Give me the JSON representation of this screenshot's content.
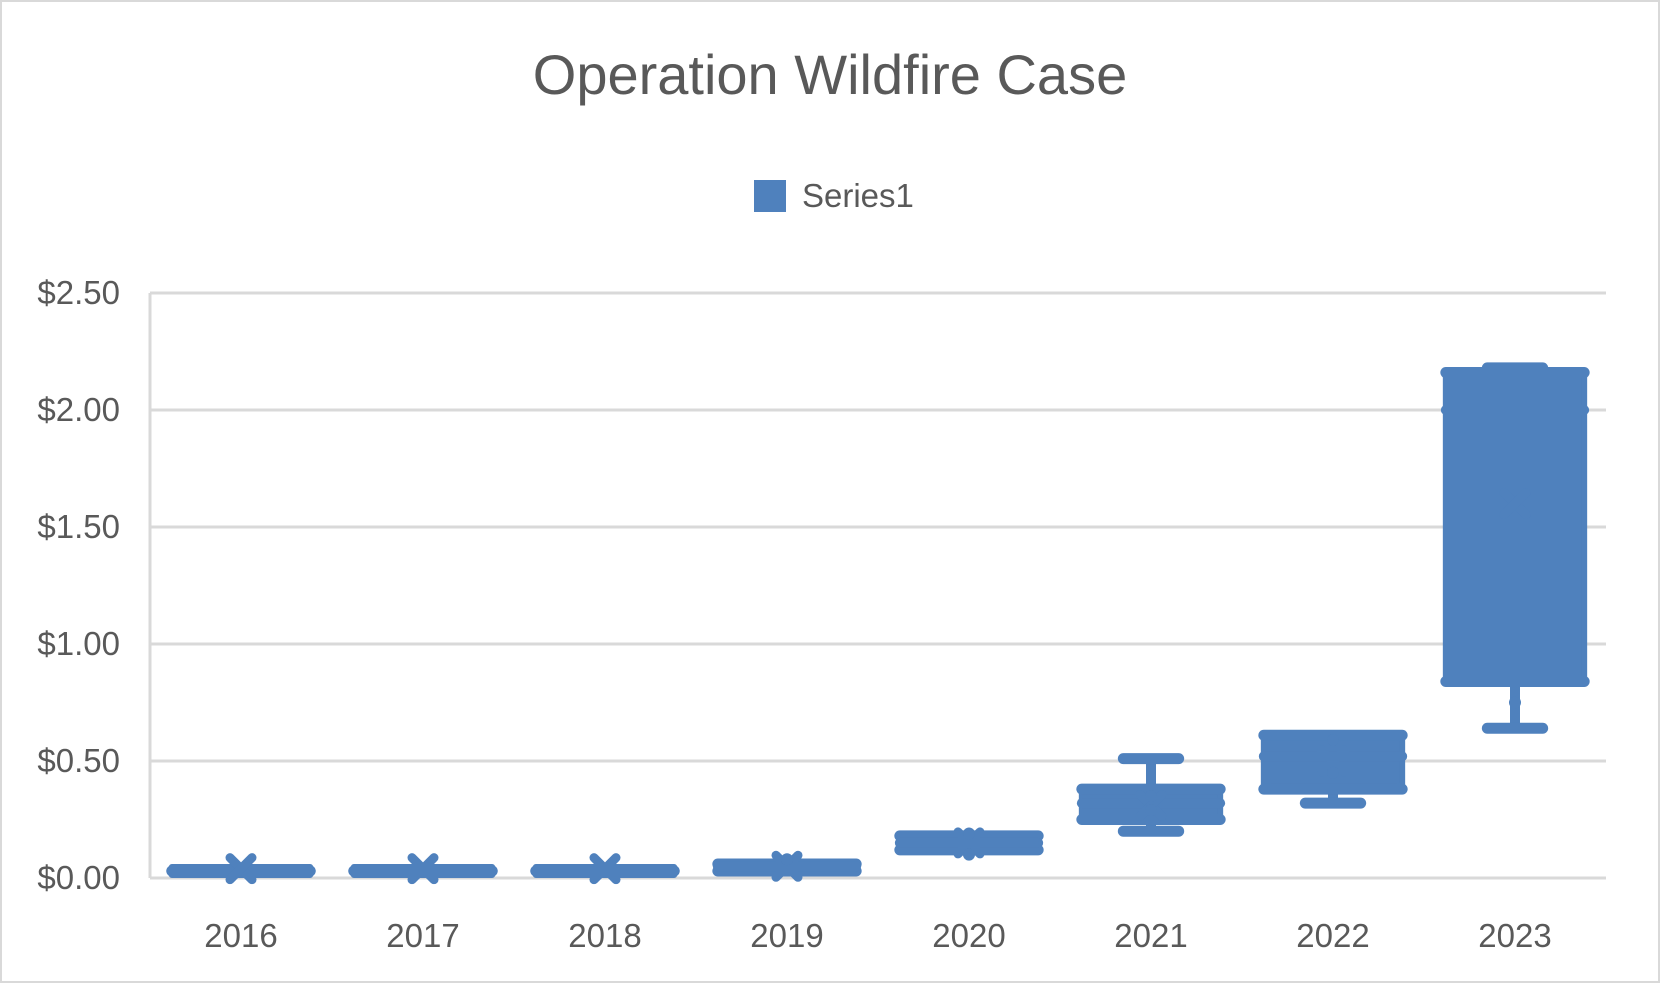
{
  "chart_data": {
    "type": "box",
    "title": "Operation Wildfire Case",
    "xlabel": "",
    "ylabel": "",
    "categories": [
      "2016",
      "2017",
      "2018",
      "2019",
      "2020",
      "2021",
      "2022",
      "2023"
    ],
    "series": [
      {
        "name": "Series1",
        "color": "#4f81bd",
        "boxes": [
          {
            "category": "2016",
            "min": 0.03,
            "q1": 0.03,
            "median": 0.03,
            "q3": 0.03,
            "max": 0.03,
            "mean": 0.04,
            "points": []
          },
          {
            "category": "2017",
            "min": 0.03,
            "q1": 0.03,
            "median": 0.03,
            "q3": 0.03,
            "max": 0.03,
            "mean": 0.04,
            "points": []
          },
          {
            "category": "2018",
            "min": 0.03,
            "q1": 0.03,
            "median": 0.03,
            "q3": 0.03,
            "max": 0.03,
            "mean": 0.04,
            "points": []
          },
          {
            "category": "2019",
            "min": 0.03,
            "q1": 0.03,
            "median": 0.05,
            "q3": 0.06,
            "max": 0.06,
            "mean": 0.05,
            "points": [
              0.08
            ]
          },
          {
            "category": "2020",
            "min": 0.12,
            "q1": 0.12,
            "median": 0.15,
            "q3": 0.18,
            "max": 0.18,
            "mean": 0.15,
            "points": [
              0.1,
              0.19
            ]
          },
          {
            "category": "2021",
            "min": 0.2,
            "q1": 0.25,
            "median": 0.32,
            "q3": 0.38,
            "max": 0.51,
            "mean": 0.31,
            "points": [
              0.29,
              0.35
            ]
          },
          {
            "category": "2022",
            "min": 0.32,
            "q1": 0.38,
            "median": 0.52,
            "q3": 0.61,
            "max": 0.61,
            "mean": 0.5,
            "points": [
              0.45,
              0.59
            ]
          },
          {
            "category": "2023",
            "min": 0.64,
            "q1": 0.84,
            "median": 2.0,
            "q3": 2.16,
            "max": 2.18,
            "mean": 1.6,
            "points": [
              0.75
            ]
          }
        ]
      }
    ],
    "ylim": [
      0,
      2.5
    ],
    "yticks": [
      0,
      0.5,
      1.0,
      1.5,
      2.0,
      2.5
    ],
    "ytick_labels": [
      "$0.00",
      "$0.50",
      "$1.00",
      "$1.50",
      "$2.00",
      "$2.50"
    ],
    "grid": true,
    "legend": {
      "position": "top",
      "entries": [
        "Series1"
      ]
    },
    "colors": {
      "series": "#4f81bd",
      "grid": "#d9d9d9",
      "text": "#595959"
    }
  }
}
